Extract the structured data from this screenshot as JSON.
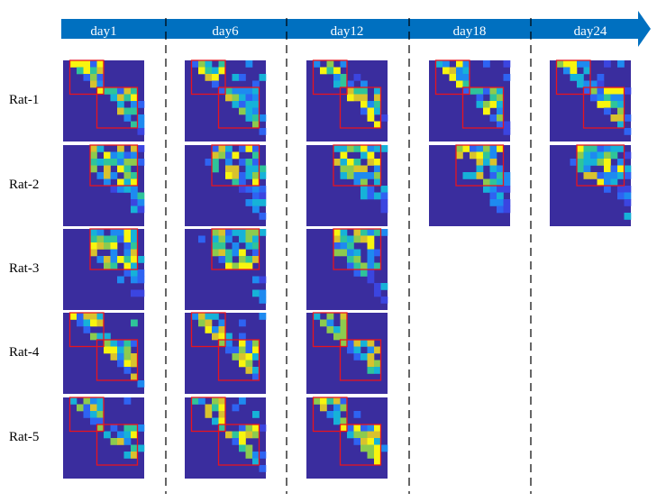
{
  "timeline": {
    "days": [
      "day1",
      "day6",
      "day12",
      "day18",
      "day24"
    ],
    "arrow_color": "#0070C0"
  },
  "rows": [
    "Rat-1",
    "Rat-2",
    "Rat-3",
    "Rat-4",
    "Rat-5"
  ],
  "colors": {
    "background_cell": "#3A2D9E",
    "box_outline": "#E8141E",
    "separator_line": "#000000"
  },
  "availability": [
    [
      true,
      true,
      true,
      true,
      true
    ],
    [
      true,
      true,
      true,
      true,
      true
    ],
    [
      true,
      true,
      true,
      false,
      false
    ],
    [
      true,
      true,
      true,
      false,
      false
    ],
    [
      true,
      true,
      true,
      false,
      false
    ]
  ]
}
